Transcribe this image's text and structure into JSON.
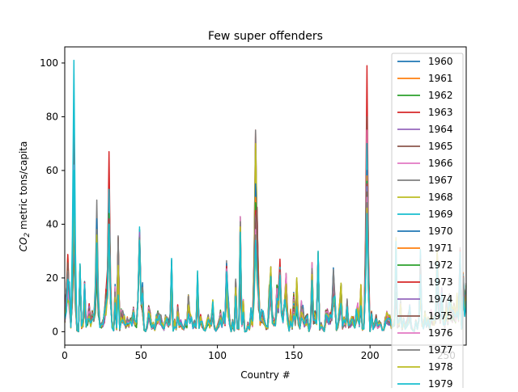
{
  "chart_data": {
    "type": "line",
    "title": "Few super offenders",
    "xlabel": "Country #",
    "ylabel_base": "CO",
    "ylabel_sub": "2",
    "ylabel_rest": " metric tons/capita",
    "xlim": [
      0,
      263
    ],
    "ylim": [
      -5,
      106
    ],
    "x_ticks": [
      0,
      50,
      100,
      150,
      200,
      250
    ],
    "y_ticks": [
      0,
      20,
      40,
      60,
      80,
      100
    ],
    "x_tick_labels": [
      "0",
      "50",
      "100",
      "150",
      "200",
      "250"
    ],
    "y_tick_labels": [
      "0",
      "20",
      "40",
      "60",
      "80",
      "100"
    ],
    "legend_position": "top-right",
    "grid": false,
    "series_names": [
      "1960",
      "1961",
      "1962",
      "1963",
      "1964",
      "1965",
      "1966",
      "1967",
      "1968",
      "1969",
      "1970",
      "1971",
      "1972",
      "1973",
      "1974",
      "1975",
      "1976",
      "1977",
      "1978",
      "1979"
    ],
    "series_colors": [
      "#1f77b4",
      "#ff7f0e",
      "#2ca02c",
      "#d62728",
      "#9467bd",
      "#8c564b",
      "#e377c2",
      "#7f7f7f",
      "#bcbd22",
      "#17becf",
      "#1f77b4",
      "#ff7f0e",
      "#2ca02c",
      "#d62728",
      "#9467bd",
      "#8c564b",
      "#e377c2",
      "#7f7f7f",
      "#bcbd22",
      "#17becf"
    ],
    "peaks": [
      {
        "x": 6,
        "values": [
          30,
          32,
          34,
          78,
          38,
          40,
          62,
          45,
          55,
          101,
          40,
          42,
          44,
          46,
          48,
          47,
          49,
          50,
          52,
          60
        ]
      },
      {
        "x": 21,
        "values": [
          24,
          22,
          20,
          36,
          28,
          26,
          30,
          49,
          32,
          40,
          42,
          35,
          30,
          28,
          30,
          26,
          34,
          38,
          36,
          33
        ]
      },
      {
        "x": 29,
        "values": [
          50,
          45,
          48,
          67,
          40,
          44,
          52,
          40,
          46,
          53,
          36,
          40,
          44,
          42,
          38,
          35,
          36,
          35,
          38,
          40
        ]
      },
      {
        "x": 49,
        "values": [
          35,
          36,
          38,
          35,
          34,
          36,
          37,
          38,
          36,
          39,
          34,
          33,
          35,
          36,
          37,
          33,
          34,
          35,
          34,
          34
        ]
      },
      {
        "x": 125,
        "values": [
          40,
          44,
          42,
          75,
          50,
          60,
          68,
          75,
          70,
          44,
          55,
          50,
          48,
          45,
          42,
          40,
          38,
          36,
          30,
          34
        ]
      },
      {
        "x": 141,
        "values": [
          20,
          22,
          24,
          27,
          22,
          21,
          23,
          20,
          22,
          24,
          21,
          20,
          22,
          23,
          22,
          20,
          21,
          22,
          20,
          21
        ]
      },
      {
        "x": 198,
        "values": [
          45,
          60,
          62,
          99,
          70,
          80,
          75,
          66,
          64,
          70,
          60,
          58,
          56,
          55,
          54,
          52,
          50,
          48,
          46,
          44
        ]
      }
    ]
  }
}
